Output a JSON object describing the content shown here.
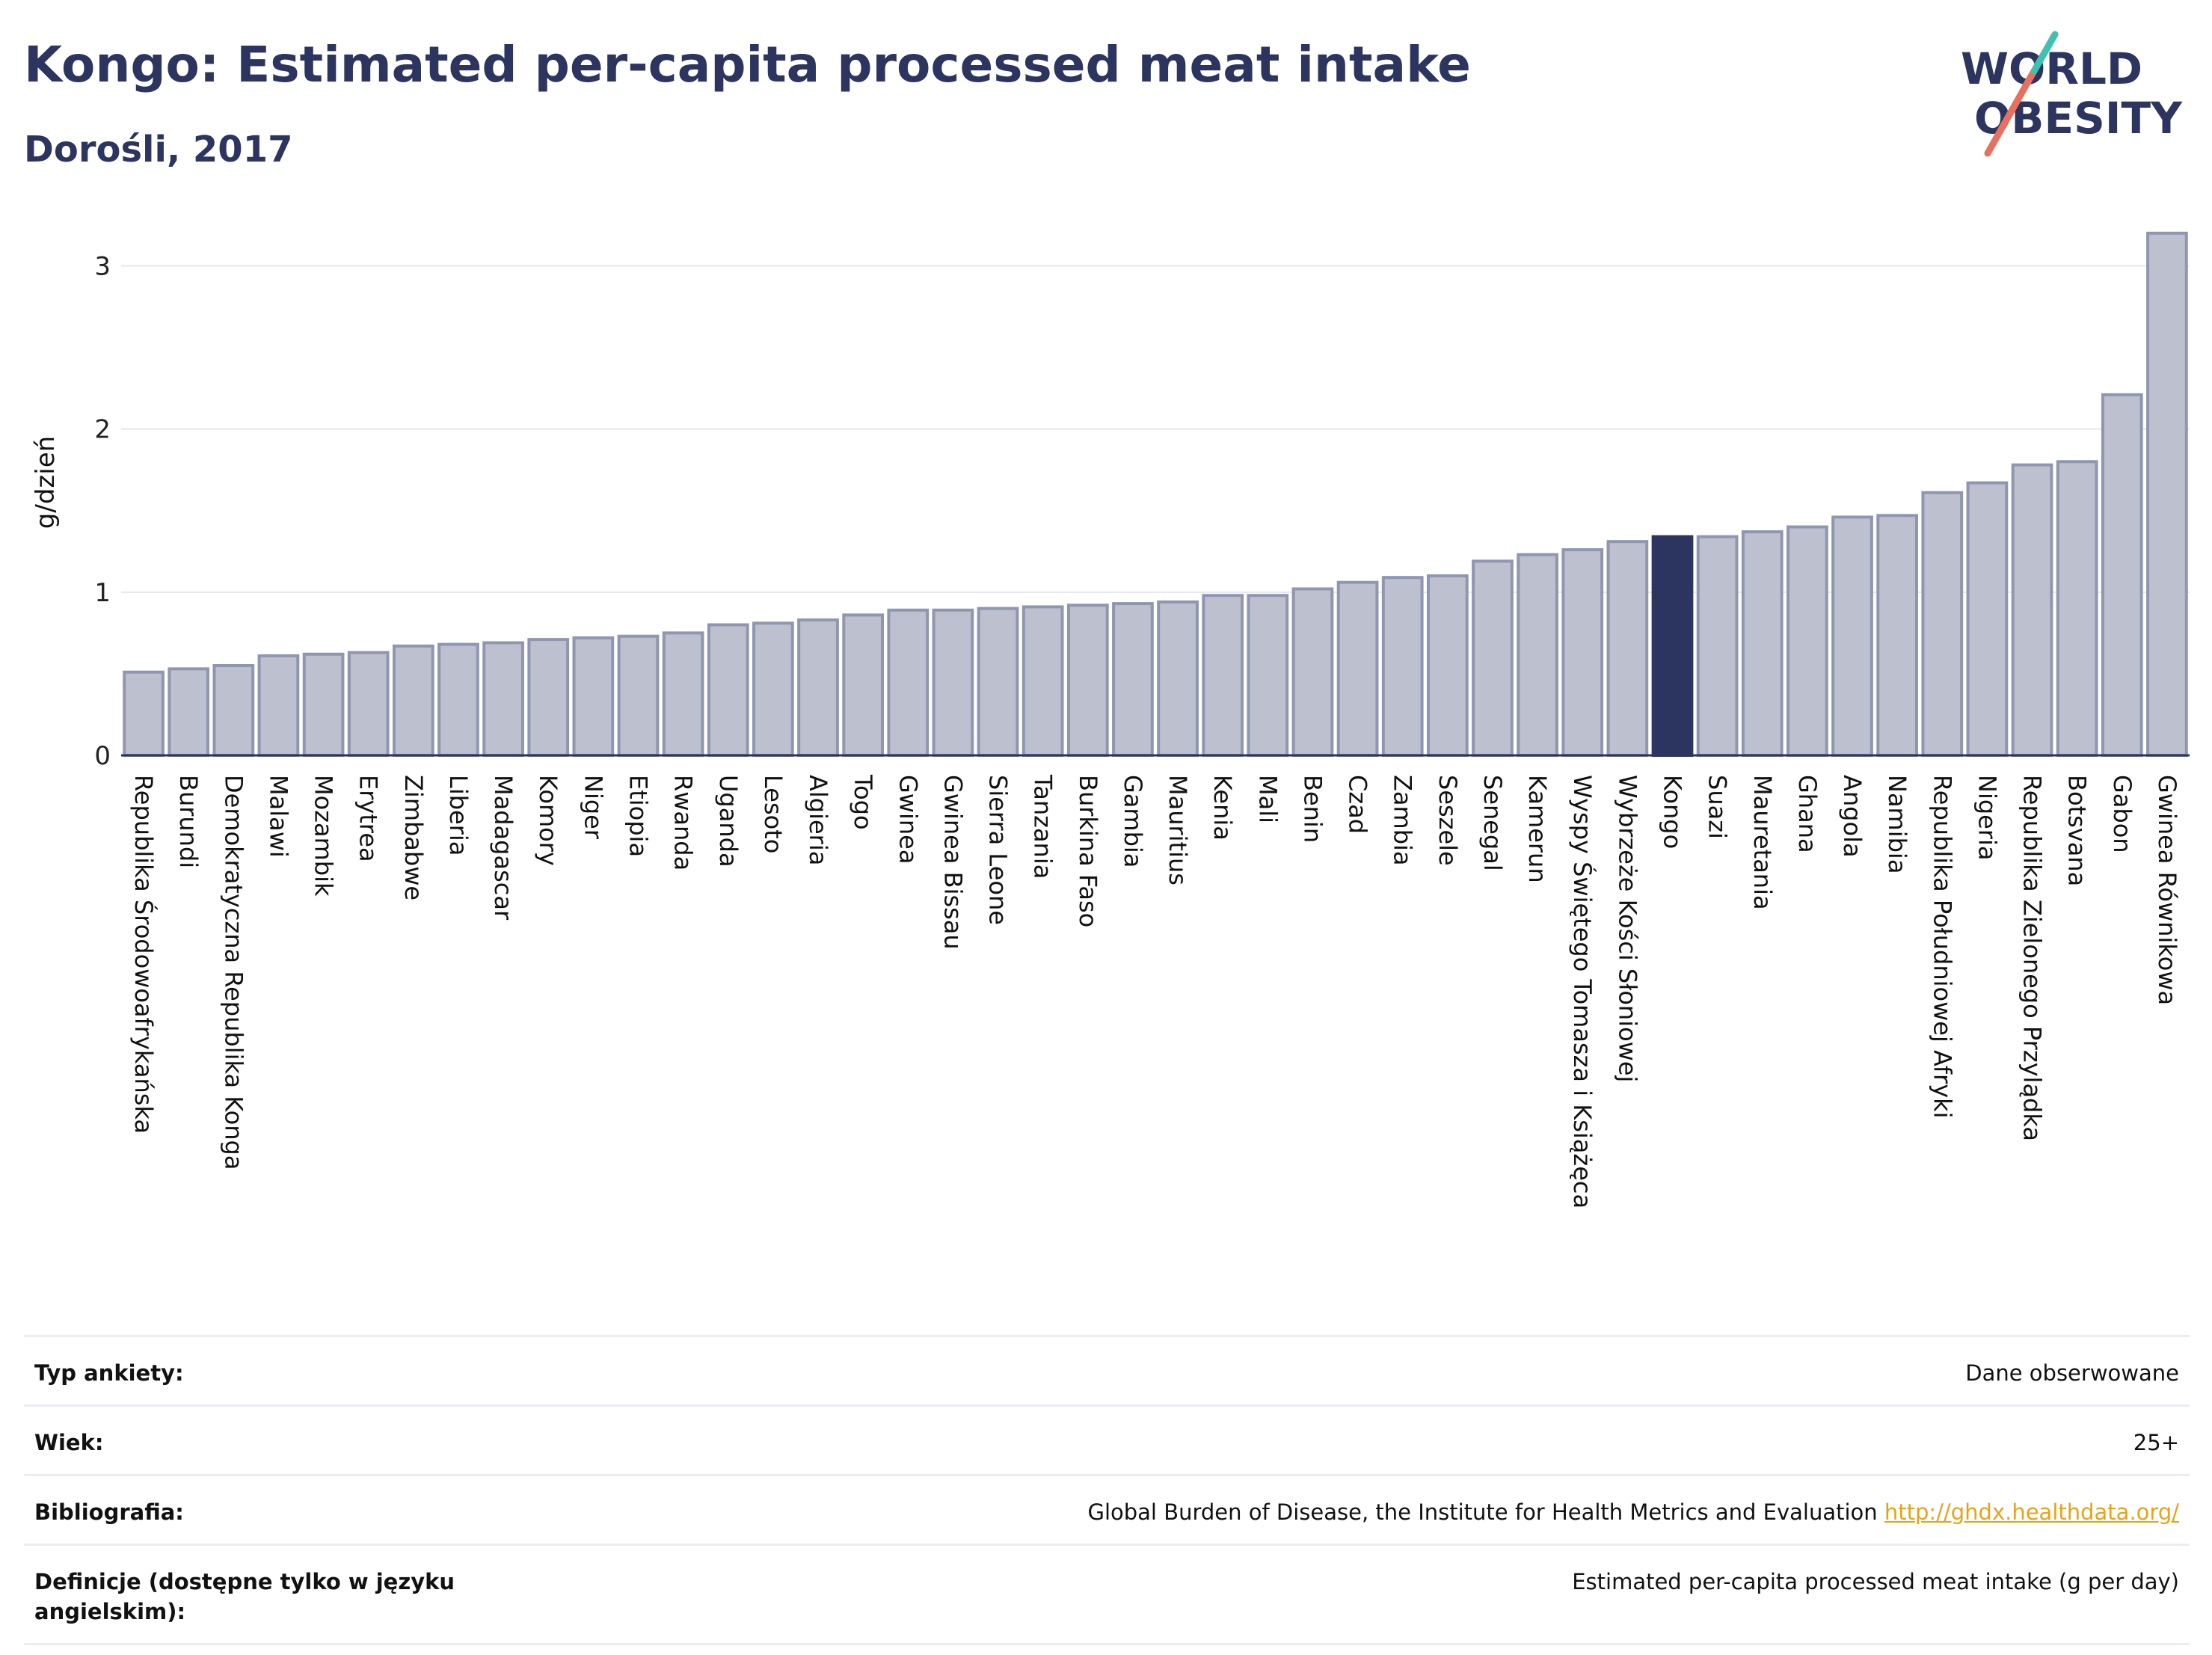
{
  "header": {
    "title": "Kongo: Estimated per-capita processed meat intake",
    "subtitle": "Dorośli, 2017"
  },
  "logo": {
    "line1": "WORLD",
    "line2": "OBESITY",
    "slash_colors": [
      "#e8705f",
      "#3fc1b0"
    ],
    "text_color": "#2c3560"
  },
  "colors": {
    "bar": "#bcc0cf",
    "bar_stroke": "#8f96b0",
    "highlight": "#2c3560",
    "grid": "#e4e6ee"
  },
  "chart_data": {
    "type": "bar",
    "ylabel": "g/dzień",
    "xlabel": "",
    "ylim": [
      0,
      3.3
    ],
    "yticks": [
      0,
      1,
      2,
      3
    ],
    "grid": true,
    "highlight": "Kongo",
    "categories": [
      "Republika Środowoafrykańska",
      "Burundi",
      "Demokratyczna Republika Konga",
      "Malawi",
      "Mozambik",
      "Erytrea",
      "Zimbabwe",
      "Liberia",
      "Madagascar",
      "Komory",
      "Niger",
      "Etiopia",
      "Rwanda",
      "Uganda",
      "Lesoto",
      "Algieria",
      "Togo",
      "Gwinea",
      "Gwinea Bissau",
      "Sierra Leone",
      "Tanzania",
      "Burkina Faso",
      "Gambia",
      "Mauritius",
      "Kenia",
      "Mali",
      "Benin",
      "Czad",
      "Zambia",
      "Seszele",
      "Senegal",
      "Kamerun",
      "Wyspy Świętego Tomasza i Książęca",
      "Wybrzeże Kości Słoniowej",
      "Kongo",
      "Suazi",
      "Mauretania",
      "Ghana",
      "Angola",
      "Namibia",
      "Republika Południowej Afryki",
      "Nigeria",
      "Republika Zielonego Przylądka",
      "Botsvana",
      "Gabon",
      "Gwinea Równikowa"
    ],
    "values": [
      0.51,
      0.53,
      0.55,
      0.61,
      0.62,
      0.63,
      0.67,
      0.68,
      0.69,
      0.71,
      0.72,
      0.73,
      0.75,
      0.8,
      0.81,
      0.83,
      0.86,
      0.89,
      0.89,
      0.9,
      0.91,
      0.92,
      0.93,
      0.94,
      0.98,
      0.98,
      1.02,
      1.06,
      1.09,
      1.1,
      1.19,
      1.23,
      1.26,
      1.31,
      1.34,
      1.34,
      1.37,
      1.4,
      1.46,
      1.47,
      1.61,
      1.67,
      1.78,
      1.8,
      2.21,
      3.2
    ]
  },
  "info": {
    "rows": [
      {
        "label": "Typ ankiety:",
        "value": "Dane obserwowane",
        "link": ""
      },
      {
        "label": "Wiek:",
        "value": "25+",
        "link": ""
      },
      {
        "label": "Bibliografia:",
        "value": "Global Burden of Disease, the Institute for Health Metrics and Evaluation",
        "link": "http://ghdx.healthdata.org/"
      },
      {
        "label": "Definicje (dostępne tylko w języku angielskim):",
        "value": "Estimated per-capita processed meat intake (g per day)",
        "link": ""
      }
    ]
  }
}
